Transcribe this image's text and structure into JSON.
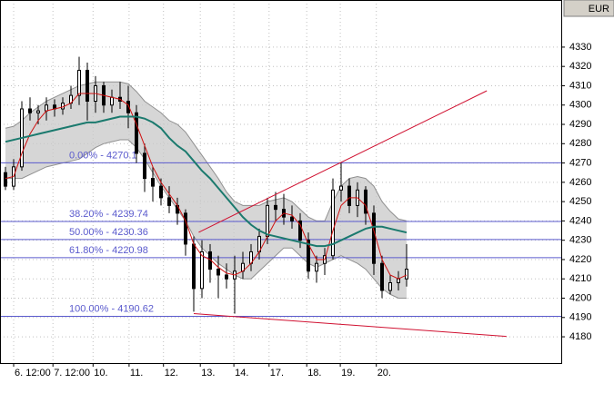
{
  "chart_data": {
    "type": "candlestick",
    "symbol": "EUR",
    "ylim": [
      4166.4,
      4354.4
    ],
    "yticks": [
      4180,
      4190,
      4200,
      4210,
      4220,
      4230,
      4240,
      4250,
      4260,
      4270,
      4280,
      4290,
      4300,
      4310,
      4320,
      4330
    ],
    "xlim": [
      -0.667,
      67.889
    ],
    "xticks": [
      {
        "value": 1,
        "label": "6. 12:00"
      },
      {
        "value": 5.8,
        "label": "7. 12:00"
      },
      {
        "value": 10.7,
        "label": "10."
      },
      {
        "value": 15.1,
        "label": "11."
      },
      {
        "value": 19.3,
        "label": "12."
      },
      {
        "value": 23.8,
        "label": "13."
      },
      {
        "value": 27.9,
        "label": "14."
      },
      {
        "value": 32.2,
        "label": "17."
      },
      {
        "value": 36.8,
        "label": "18."
      },
      {
        "value": 40.9,
        "label": "19."
      },
      {
        "value": 45.3,
        "label": "20."
      }
    ],
    "grid": true,
    "up_color": "#ffffff",
    "down_color": "#000000",
    "open": [
      4265,
      4258,
      4268,
      4298,
      4296,
      4297,
      4300,
      4298,
      4301,
      4305,
      4318,
      4302,
      4310,
      4300,
      4304,
      4302,
      4296,
      4275,
      4262,
      4258,
      4252,
      4248,
      4244,
      4228,
      4205,
      4224,
      4215,
      4212,
      4210,
      4214,
      4218,
      4224,
      4232,
      4248,
      4246,
      4242,
      4240,
      4230,
      4214,
      4218,
      4222,
      4256,
      4258,
      4248,
      4256,
      4244,
      4218,
      4204,
      4208,
      4210
    ],
    "high": [
      4268,
      4272,
      4302,
      4304,
      4300,
      4304,
      4303,
      4304,
      4310,
      4325,
      4322,
      4315,
      4312,
      4308,
      4312,
      4310,
      4300,
      4280,
      4268,
      4262,
      4258,
      4252,
      4246,
      4232,
      4230,
      4228,
      4222,
      4218,
      4222,
      4224,
      4228,
      4236,
      4252,
      4255,
      4254,
      4248,
      4244,
      4234,
      4222,
      4226,
      4262,
      4270,
      4262,
      4260,
      4258,
      4248,
      4222,
      4212,
      4214,
      4228
    ],
    "low": [
      4256,
      4256,
      4266,
      4292,
      4290,
      4292,
      4294,
      4295,
      4298,
      4300,
      4292,
      4296,
      4296,
      4296,
      4298,
      4288,
      4270,
      4255,
      4250,
      4248,
      4244,
      4238,
      4222,
      4193,
      4200,
      4208,
      4200,
      4205,
      4192,
      4210,
      4214,
      4220,
      4228,
      4240,
      4238,
      4236,
      4226,
      4210,
      4208,
      4212,
      4220,
      4250,
      4244,
      4242,
      4238,
      4212,
      4200,
      4202,
      4204,
      4206
    ],
    "close": [
      4258,
      4268,
      4298,
      4296,
      4297,
      4300,
      4298,
      4301,
      4305,
      4318,
      4302,
      4310,
      4300,
      4304,
      4302,
      4296,
      4275,
      4262,
      4258,
      4252,
      4248,
      4244,
      4228,
      4205,
      4224,
      4215,
      4212,
      4210,
      4214,
      4218,
      4224,
      4232,
      4248,
      4246,
      4242,
      4240,
      4230,
      4214,
      4218,
      4222,
      4256,
      4258,
      4248,
      4256,
      4244,
      4218,
      4204,
      4208,
      4210,
      4215
    ],
    "lines": [
      {
        "color": "#d01010",
        "values": [
          4262,
          4263,
          4275,
          4285,
          4292,
          4297,
          4298,
          4299,
          4301,
          4306,
          4306,
          4306,
          4305,
          4304,
          4303,
          4300,
          4290,
          4279,
          4268,
          4260,
          4254,
          4248,
          4240,
          4228,
          4222,
          4220,
          4216,
          4213,
          4212,
          4214,
          4218,
          4224,
          4232,
          4240,
          4244,
          4243,
          4238,
          4228,
          4220,
          4220,
          4235,
          4248,
          4252,
          4252,
          4248,
          4235,
          4220,
          4212,
          4210,
          4212
        ]
      },
      {
        "color": "#1b7a6e",
        "values": [
          4281,
          4282,
          4283,
          4284,
          4285,
          4286,
          4287,
          4288,
          4289,
          4290,
          4291,
          4291,
          4292,
          4293,
          4294,
          4294,
          4294,
          4293,
          4291,
          4288,
          4283,
          4279,
          4276,
          4271,
          4266,
          4262,
          4257,
          4252,
          4247,
          4242,
          4238,
          4235,
          4233,
          4232,
          4231,
          4230,
          4229,
          4228,
          4227,
          4227,
          4228,
          4230,
          4232,
          4234,
          4236,
          4237,
          4237,
          4236,
          4235,
          4234
        ]
      }
    ],
    "band": {
      "color": "#c8c8c8",
      "upper": [
        4288,
        4289,
        4292,
        4296,
        4299,
        4302,
        4304,
        4306,
        4308,
        4310,
        4311,
        4312,
        4312,
        4312,
        4312,
        4311,
        4307,
        4302,
        4299,
        4296,
        4292,
        4290,
        4286,
        4280,
        4274,
        4268,
        4262,
        4255,
        4250,
        4248,
        4248,
        4248,
        4250,
        4251,
        4252,
        4250,
        4246,
        4242,
        4240,
        4240,
        4250,
        4258,
        4262,
        4263,
        4262,
        4258,
        4250,
        4245,
        4241,
        4240
      ],
      "lower": [
        4262,
        4262,
        4262,
        4264,
        4266,
        4268,
        4269,
        4270,
        4271,
        4272,
        4275,
        4278,
        4280,
        4281,
        4282,
        4282,
        4278,
        4272,
        4265,
        4258,
        4252,
        4246,
        4240,
        4232,
        4226,
        4222,
        4218,
        4215,
        4212,
        4210,
        4210,
        4214,
        4218,
        4222,
        4226,
        4226,
        4222,
        4218,
        4216,
        4218,
        4220,
        4222,
        4220,
        4218,
        4215,
        4210,
        4205,
        4202,
        4200,
        4200
      ]
    },
    "fib_color": "#5a5acd",
    "fib_levels": [
      {
        "value": 4270.1,
        "label": "0.00% - 4270.1"
      },
      {
        "value": 4239.74,
        "label": "38.20% - 4239.74"
      },
      {
        "value": 4230.36,
        "label": "50.00% - 4230.36"
      },
      {
        "value": 4220.98,
        "label": "61.80% - 4220.98"
      },
      {
        "value": 4190.62,
        "label": "100.00% - 4190.62"
      }
    ],
    "trendline_color": "#d01030",
    "trendlines": [
      {
        "x": [
          23.6,
          58.8
        ],
        "y": [
          4234.1,
          4307.4
        ]
      },
      {
        "x": [
          23,
          61.2
        ],
        "y": [
          4192,
          4180.2
        ]
      }
    ]
  }
}
